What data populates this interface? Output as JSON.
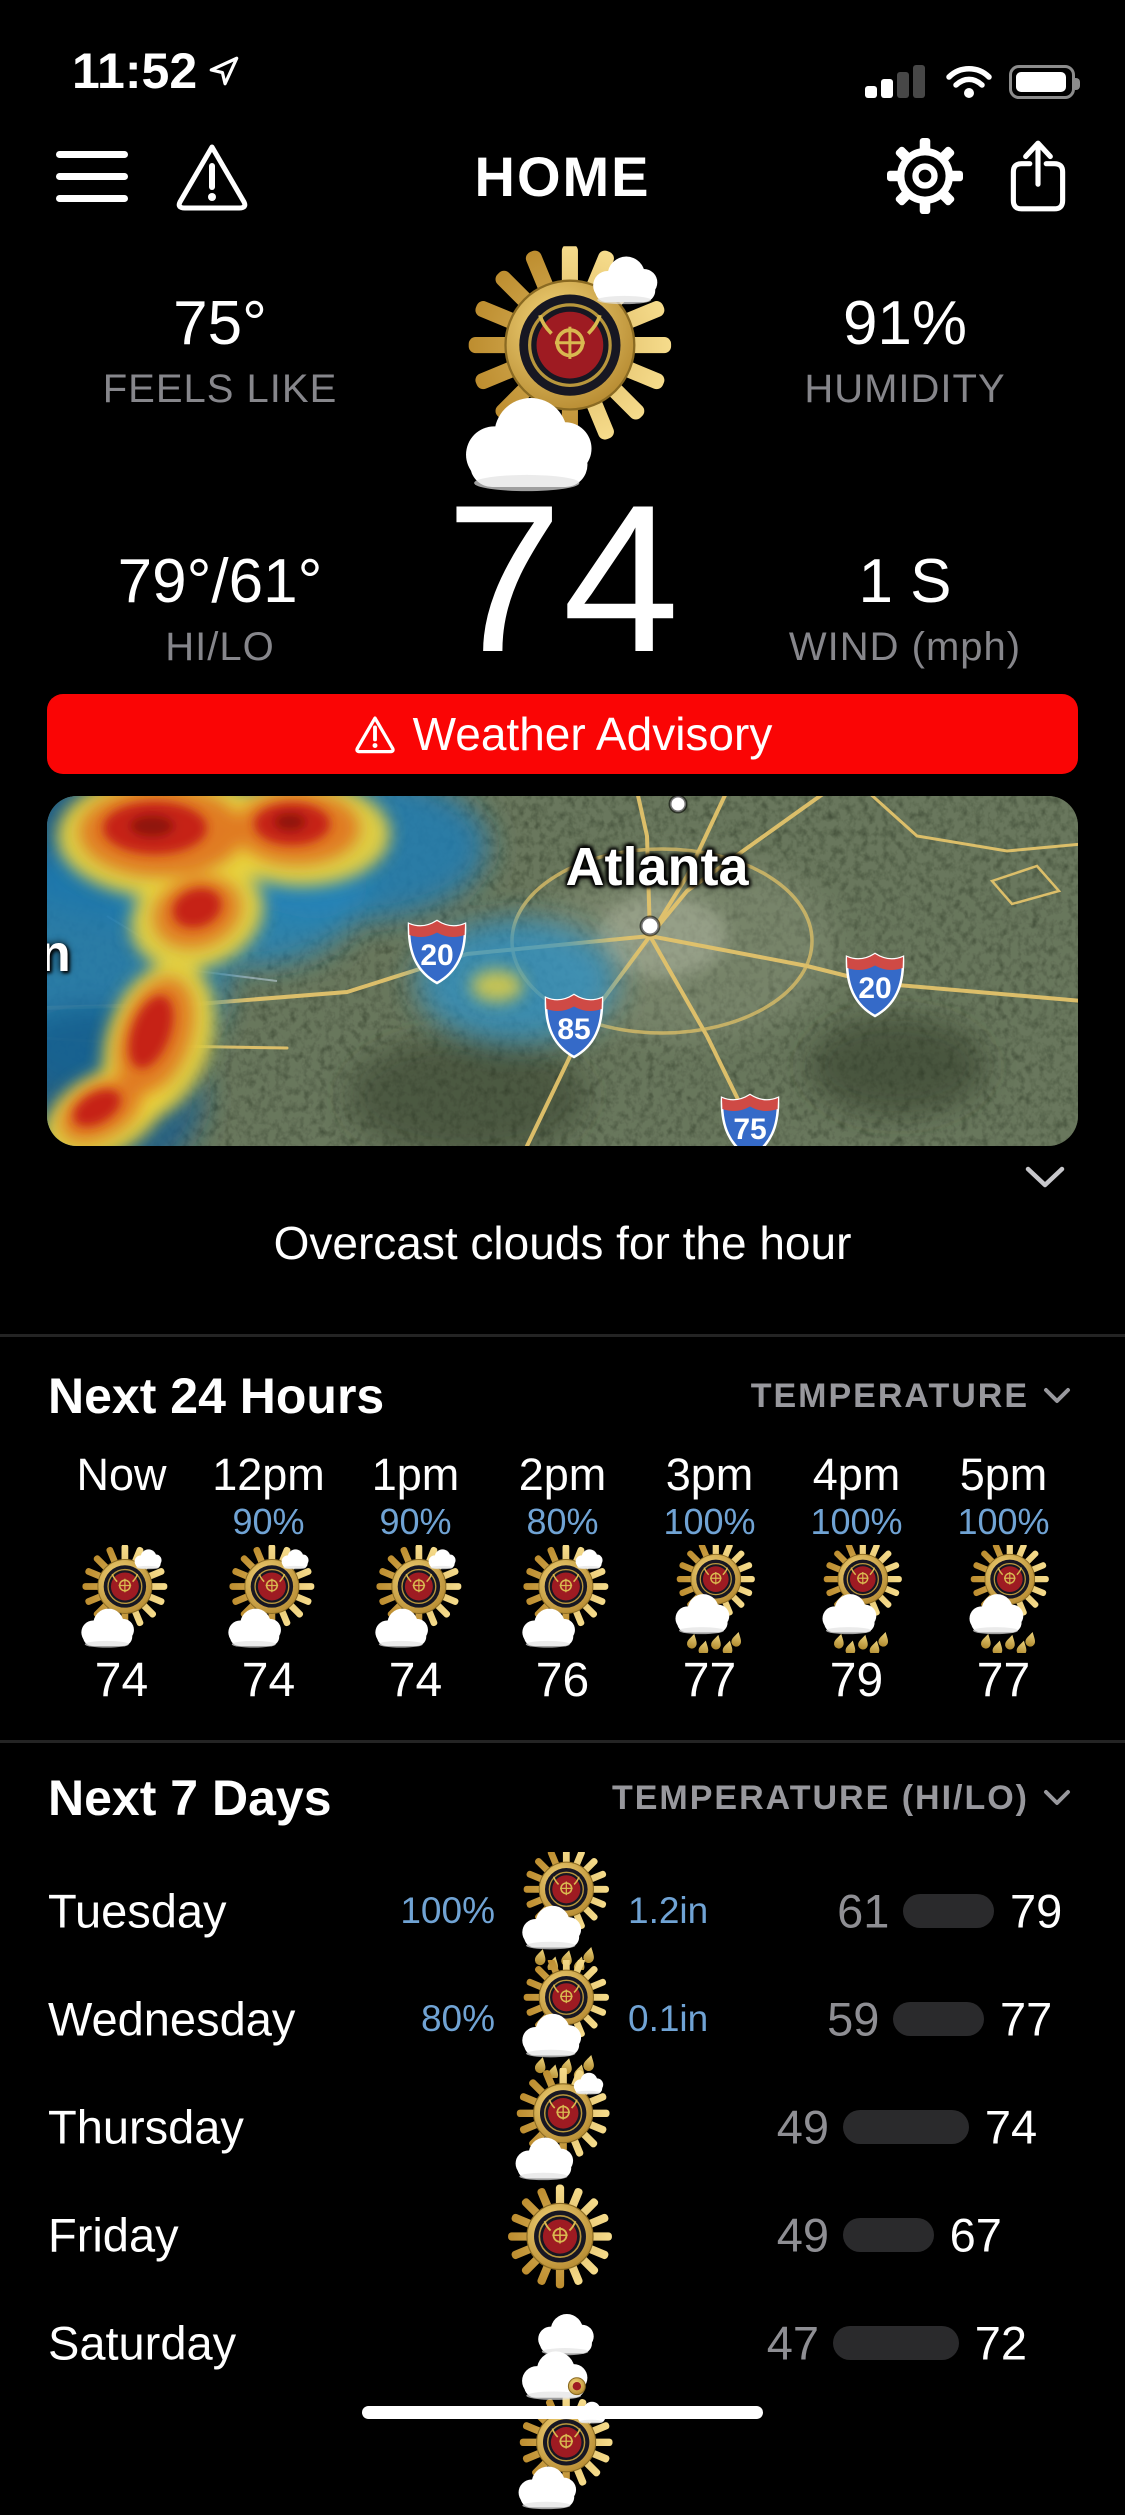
{
  "status_bar": {
    "time": "11:52"
  },
  "header": {
    "title": "HOME"
  },
  "current": {
    "feels_like_value": "75°",
    "feels_like_label": "FEELS LIKE",
    "humidity_value": "91%",
    "humidity_label": "HUMIDITY",
    "hilo_value": "79°/61°",
    "hilo_label": "HI/LO",
    "temp": "74",
    "wind_value": "1 S",
    "wind_label": "WIND (mph)",
    "icon": "partly-cloudy"
  },
  "advisory": {
    "label": "Weather Advisory",
    "color": "#fa0505"
  },
  "map": {
    "city_label": "Atlanta",
    "partial_label": "n",
    "shields": [
      {
        "num": "20"
      },
      {
        "num": "85"
      },
      {
        "num": "20"
      },
      {
        "num": "75"
      }
    ]
  },
  "condition_summary": "Overcast clouds for the hour",
  "hourly": {
    "title": "Next 24 Hours",
    "metric_label": "TEMPERATURE",
    "items": [
      {
        "time": "Now",
        "precip": "",
        "icon": "partly-cloudy",
        "temp": "74"
      },
      {
        "time": "12pm",
        "precip": "90%",
        "icon": "partly-cloudy",
        "temp": "74"
      },
      {
        "time": "1pm",
        "precip": "90%",
        "icon": "partly-cloudy",
        "temp": "74"
      },
      {
        "time": "2pm",
        "precip": "80%",
        "icon": "partly-cloudy",
        "temp": "76"
      },
      {
        "time": "3pm",
        "precip": "100%",
        "icon": "rain",
        "temp": "77"
      },
      {
        "time": "4pm",
        "precip": "100%",
        "icon": "rain",
        "temp": "79"
      },
      {
        "time": "5pm",
        "precip": "100%",
        "icon": "rain",
        "temp": "77"
      }
    ]
  },
  "daily": {
    "title": "Next 7 Days",
    "metric_label": "TEMPERATURE (HI/LO)",
    "temp_scale": {
      "min": 47,
      "max": 79
    },
    "partial_next_icon": "partly-cloudy",
    "items": [
      {
        "day": "Tuesday",
        "precip_pct": "100%",
        "precip_amt": "1.2in",
        "icon": "rain",
        "lo": 61,
        "hi": 79
      },
      {
        "day": "Wednesday",
        "precip_pct": "80%",
        "precip_amt": "0.1in",
        "icon": "rain",
        "lo": 59,
        "hi": 77
      },
      {
        "day": "Thursday",
        "precip_pct": "",
        "precip_amt": "",
        "icon": "partly-cloudy",
        "lo": 49,
        "hi": 74
      },
      {
        "day": "Friday",
        "precip_pct": "",
        "precip_amt": "",
        "icon": "sunny",
        "lo": 49,
        "hi": 67
      },
      {
        "day": "Saturday",
        "precip_pct": "",
        "precip_amt": "",
        "icon": "cloudy",
        "lo": 47,
        "hi": 72
      }
    ]
  },
  "colors": {
    "advisory_red": "#fa0505",
    "precip_blue": "#70a3d4",
    "label_gray": "#86868b",
    "pill_gray": "#2a2a2c"
  }
}
